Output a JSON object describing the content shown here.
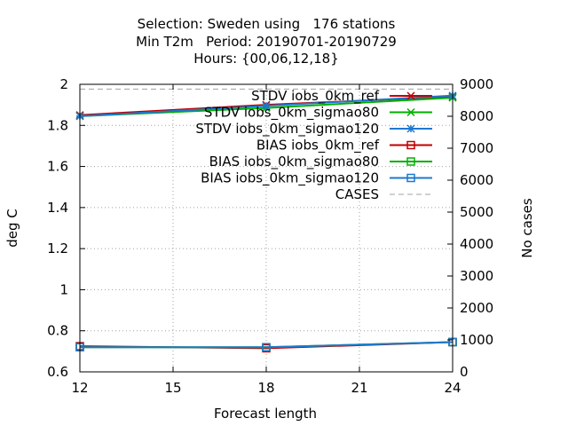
{
  "title_lines": [
    "Selection: Sweden using   176 stations",
    "Min T2m   Period: 20190701-20190729",
    "Hours: {00,06,12,18}"
  ],
  "chart_data": {
    "type": "line",
    "xlabel": "Forecast length",
    "ylabel": "deg C",
    "y2label": "No cases",
    "xlim": [
      12,
      24
    ],
    "ylim": [
      0.6,
      2.0
    ],
    "y2lim": [
      0,
      9000
    ],
    "x_ticks": [
      12,
      15,
      18,
      21,
      24
    ],
    "y_ticks": [
      0.6,
      0.8,
      1.0,
      1.2,
      1.4,
      1.6,
      1.8,
      2.0
    ],
    "y_tick_labels": [
      "0.6",
      "0.8",
      "1",
      "1.2",
      "1.4",
      "1.6",
      "1.8",
      "2"
    ],
    "y2_ticks": [
      0,
      1000,
      2000,
      3000,
      4000,
      5000,
      6000,
      7000,
      8000,
      9000
    ],
    "grid": true,
    "legend_position": "top-right",
    "x": [
      12,
      18,
      24
    ],
    "series": [
      {
        "name": "STDV iobs_0km_ref",
        "axis": "y",
        "values": [
          1.85,
          1.9,
          1.94
        ],
        "color": "#c00000",
        "marker": "x"
      },
      {
        "name": "STDV iobs_0km_sigmao80",
        "axis": "y",
        "values": [
          1.845,
          1.885,
          1.935
        ],
        "color": "#00b000",
        "marker": "x"
      },
      {
        "name": "STDV iobs_0km_sigmao120",
        "axis": "y",
        "values": [
          1.845,
          1.895,
          1.945
        ],
        "color": "#1e78d0",
        "marker": "star"
      },
      {
        "name": "BIAS iobs_0km_ref",
        "axis": "y",
        "values": [
          0.725,
          0.715,
          0.745
        ],
        "color": "#c00000",
        "marker": "square"
      },
      {
        "name": "BIAS iobs_0km_sigmao80",
        "axis": "y",
        "values": [
          0.72,
          0.72,
          0.745
        ],
        "color": "#00b000",
        "marker": "square"
      },
      {
        "name": "BIAS iobs_0km_sigmao120",
        "axis": "y",
        "values": [
          0.72,
          0.72,
          0.745
        ],
        "color": "#1e78d0",
        "marker": "square"
      },
      {
        "name": "CASES",
        "axis": "y2",
        "values": [
          8850,
          8850,
          8850
        ],
        "color": "#a0a0a0",
        "marker": "none",
        "dashed": true
      }
    ]
  }
}
